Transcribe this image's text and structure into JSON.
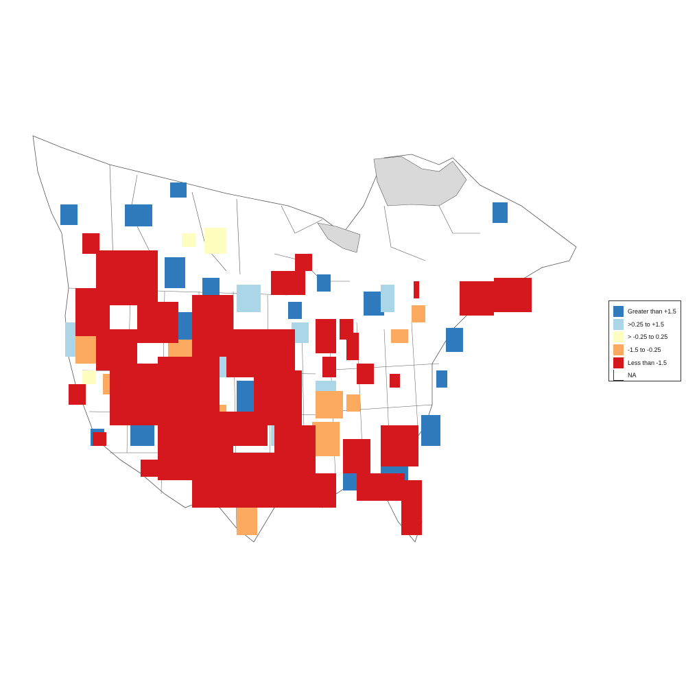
{
  "legend": {
    "items": [
      {
        "key": "gt15",
        "label": "Greater than +1.5",
        "color": "#2f7bbd"
      },
      {
        "key": "p025",
        "label": ">0.25 to +1.5",
        "color": "#abd6e8"
      },
      {
        "key": "mid",
        "label": "> -0.25 to 0.25",
        "color": "#fefec0"
      },
      {
        "key": "n025",
        "label": "-1.5 to -0.25",
        "color": "#fcaa5f"
      },
      {
        "key": "lt15",
        "label": "Less than -1.5",
        "color": "#d5181e"
      },
      {
        "key": "na",
        "label": "NA",
        "color": "#ffffff"
      }
    ]
  },
  "colors": {
    "boundary": "#555555",
    "na_region": "#d9d9d9",
    "background": "#ffffff"
  }
}
